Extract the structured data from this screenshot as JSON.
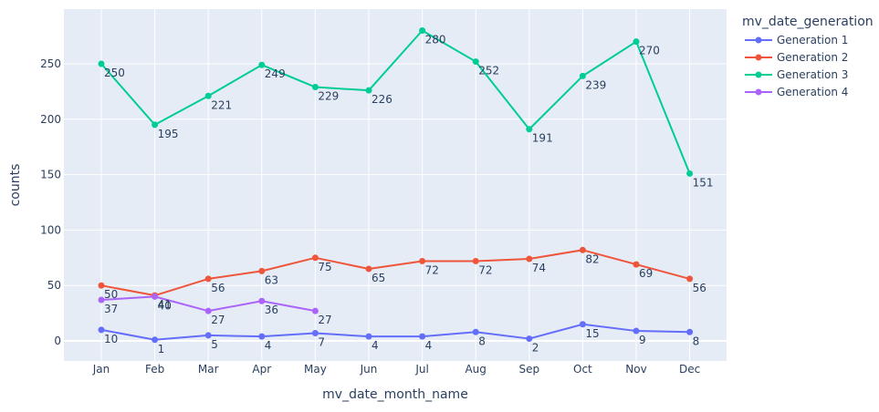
{
  "chart_data": {
    "type": "line",
    "xlabel": "mv_date_month_name",
    "ylabel": "counts",
    "categories": [
      "Jan",
      "Feb",
      "Mar",
      "Apr",
      "May",
      "Jun",
      "Jul",
      "Aug",
      "Sep",
      "Oct",
      "Nov",
      "Dec"
    ],
    "ylim": [
      -18,
      293
    ],
    "yticks": [
      0,
      50,
      100,
      150,
      200,
      250
    ],
    "grid": true,
    "legend": {
      "title": "mv_date_generation",
      "placement": "top-right, outside plot"
    },
    "series": [
      {
        "name": "Generation 1",
        "color": "#636efa",
        "values": [
          10,
          1,
          5,
          4,
          7,
          4,
          4,
          8,
          2,
          15,
          9,
          8
        ]
      },
      {
        "name": "Generation 2",
        "color": "#EF553B",
        "values": [
          50,
          41,
          56,
          63,
          75,
          65,
          72,
          72,
          74,
          82,
          69,
          56
        ]
      },
      {
        "name": "Generation 3",
        "color": "#00cc96",
        "values": [
          250,
          195,
          221,
          249,
          229,
          226,
          280,
          252,
          191,
          239,
          270,
          151
        ]
      },
      {
        "name": "Generation 4",
        "color": "#ab63fa",
        "values": [
          37,
          40,
          27,
          36,
          27,
          null,
          null,
          null,
          null,
          null,
          null,
          null
        ]
      }
    ],
    "plot_background": "#e5ecf6",
    "grid_color": "#ffffff"
  }
}
